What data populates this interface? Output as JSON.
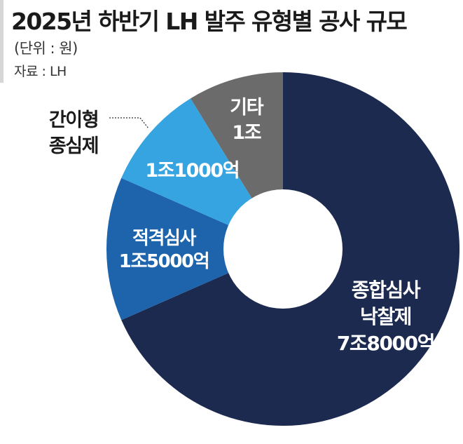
{
  "title": "2025년 하반기 LH 발주 유형별 공사 규모",
  "unit": "(단위 : 원)",
  "source": "자료 : LH",
  "chart_data": {
    "type": "pie",
    "categories": [
      "종합심사 낙찰제",
      "적격심사",
      "간이형 종심제",
      "기타"
    ],
    "values": [
      78000,
      15000,
      11000,
      10000
    ],
    "unit": "억원",
    "labels": [
      {
        "lines": [
          "종합심사",
          "낙찰제",
          "7조8000억"
        ]
      },
      {
        "lines": [
          "적격심사",
          "1조5000억"
        ]
      },
      {
        "lines": [
          "1조1000억"
        ]
      },
      {
        "lines": [
          "기타",
          "1조"
        ]
      }
    ],
    "callout": {
      "lines": [
        "간이형",
        "종심제"
      ]
    },
    "colors": [
      "#1c2a4f",
      "#1d64ad",
      "#36a4e0",
      "#6b6b6b"
    ]
  }
}
